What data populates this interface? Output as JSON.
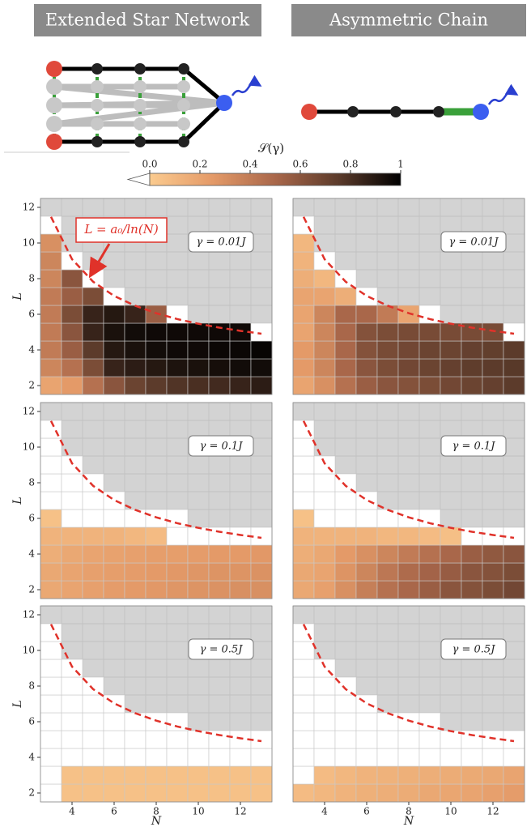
{
  "headers": [
    "Extended Star Network",
    "Asymmetric Chain"
  ],
  "colorbar": {
    "label": "𝒮(γ)",
    "lim": [
      0,
      1
    ],
    "ticks": [
      {
        "value": 0,
        "label": "0.0"
      },
      {
        "value": 0.2,
        "label": "0.2"
      },
      {
        "value": 0.4,
        "label": "0.4"
      },
      {
        "value": 0.6,
        "label": "0.6"
      },
      {
        "value": 0.8,
        "label": "0.8"
      },
      1
    ],
    "colors": [
      "#fbcb8f",
      "#e49a68",
      "#a9674a",
      "#5c3b2b",
      "#000000"
    ],
    "under": "#ffffff",
    "bad": "#d3d3d3"
  },
  "chart_data": [
    {
      "type": "heatmap",
      "annotation": "γ = 0.01J",
      "callout": "L = a₀/ln(N)",
      "ylabel": "L",
      "x": [
        3,
        4,
        5,
        6,
        7,
        8,
        9,
        10,
        11,
        12,
        13
      ],
      "y": [
        2,
        3,
        4,
        5,
        6,
        7,
        8,
        9,
        10,
        11,
        12
      ],
      "xlim": [
        2.5,
        13.5
      ],
      "ylim": [
        1.5,
        12.5
      ],
      "yticks": [
        2,
        4,
        6,
        8,
        10,
        12
      ],
      "z": [
        [
          0.2,
          0.25,
          0.45,
          0.6,
          0.7,
          0.75,
          0.78,
          0.8,
          0.82,
          0.85,
          0.88
        ],
        [
          0.35,
          0.45,
          0.65,
          0.85,
          0.88,
          0.9,
          0.92,
          0.93,
          0.94,
          0.95,
          0.95
        ],
        [
          0.4,
          0.55,
          0.75,
          0.9,
          0.93,
          0.95,
          0.96,
          0.96,
          0.97,
          0.97,
          0.98
        ],
        [
          0.4,
          0.6,
          0.85,
          0.93,
          0.95,
          0.96,
          0.96,
          0.96,
          0.96,
          0.96,
          -0.1
        ],
        [
          0.4,
          0.65,
          0.85,
          0.9,
          0.85,
          0.55,
          -0.1,
          null,
          null,
          null,
          null
        ],
        [
          0.4,
          0.55,
          0.65,
          -0.1,
          null,
          null,
          null,
          null,
          null,
          null,
          null
        ],
        [
          0.35,
          0.6,
          -0.1,
          null,
          null,
          null,
          null,
          null,
          null,
          null,
          null
        ],
        [
          0.35,
          -0.1,
          null,
          null,
          null,
          null,
          null,
          null,
          null,
          null,
          null
        ],
        [
          0.3,
          null,
          null,
          null,
          null,
          null,
          null,
          null,
          null,
          null,
          null
        ],
        [
          -0.1,
          null,
          null,
          null,
          null,
          null,
          null,
          null,
          null,
          null,
          null
        ],
        [
          null,
          null,
          null,
          null,
          null,
          null,
          null,
          null,
          null,
          null,
          null
        ]
      ],
      "curve": {
        "color": "#e0322a",
        "x": [
          3,
          4,
          5,
          6,
          7,
          8,
          9,
          10,
          11,
          12,
          13
        ],
        "y": [
          11.47,
          9.09,
          7.83,
          7.03,
          6.48,
          6.06,
          5.73,
          5.47,
          5.25,
          5.07,
          4.91
        ]
      }
    },
    {
      "type": "heatmap",
      "annotation": "γ = 0.01J",
      "x": [
        3,
        4,
        5,
        6,
        7,
        8,
        9,
        10,
        11,
        12,
        13
      ],
      "y": [
        2,
        3,
        4,
        5,
        6,
        7,
        8,
        9,
        10,
        11,
        12
      ],
      "xlim": [
        2.5,
        13.5
      ],
      "ylim": [
        1.5,
        12.5
      ],
      "z": [
        [
          0.2,
          0.3,
          0.45,
          0.55,
          0.6,
          0.62,
          0.65,
          0.68,
          0.7,
          0.72,
          0.75
        ],
        [
          0.25,
          0.35,
          0.5,
          0.6,
          0.65,
          0.68,
          0.7,
          0.72,
          0.74,
          0.75,
          0.76
        ],
        [
          0.25,
          0.35,
          0.5,
          0.62,
          0.66,
          0.68,
          0.7,
          0.7,
          0.72,
          0.73,
          0.75
        ],
        [
          0.2,
          0.35,
          0.5,
          0.62,
          0.65,
          0.66,
          0.66,
          0.66,
          0.66,
          0.66,
          -0.1
        ],
        [
          0.2,
          0.35,
          0.5,
          0.5,
          0.4,
          0.2,
          -0.1,
          null,
          null,
          null,
          null
        ],
        [
          0.2,
          0.2,
          0.15,
          -0.1,
          null,
          null,
          null,
          null,
          null,
          null,
          null
        ],
        [
          0.15,
          0.1,
          -0.1,
          null,
          null,
          null,
          null,
          null,
          null,
          null,
          null
        ],
        [
          0.12,
          -0.1,
          null,
          null,
          null,
          null,
          null,
          null,
          null,
          null,
          null
        ],
        [
          0.1,
          null,
          null,
          null,
          null,
          null,
          null,
          null,
          null,
          null,
          null
        ],
        [
          -0.1,
          null,
          null,
          null,
          null,
          null,
          null,
          null,
          null,
          null,
          null
        ],
        [
          null,
          null,
          null,
          null,
          null,
          null,
          null,
          null,
          null,
          null,
          null
        ]
      ],
      "curve": {
        "color": "#e0322a",
        "x": [
          3,
          4,
          5,
          6,
          7,
          8,
          9,
          10,
          11,
          12,
          13
        ],
        "y": [
          11.47,
          9.09,
          7.83,
          7.03,
          6.48,
          6.06,
          5.73,
          5.47,
          5.25,
          5.07,
          4.91
        ]
      }
    },
    {
      "type": "heatmap",
      "annotation": "γ = 0.1J",
      "ylabel": "L",
      "x": [
        3,
        4,
        5,
        6,
        7,
        8,
        9,
        10,
        11,
        12,
        13
      ],
      "y": [
        2,
        3,
        4,
        5,
        6,
        7,
        8,
        9,
        10,
        11,
        12
      ],
      "xlim": [
        2.5,
        13.5
      ],
      "ylim": [
        1.5,
        12.5
      ],
      "yticks": [
        2,
        4,
        6,
        8,
        10,
        12
      ],
      "z": [
        [
          0.18,
          0.2,
          0.22,
          0.24,
          0.25,
          0.26,
          0.27,
          0.28,
          0.29,
          0.3,
          0.3
        ],
        [
          0.18,
          0.2,
          0.22,
          0.23,
          0.24,
          0.25,
          0.26,
          0.27,
          0.28,
          0.28,
          0.29
        ],
        [
          0.15,
          0.18,
          0.2,
          0.21,
          0.22,
          0.23,
          0.23,
          0.24,
          0.25,
          0.25,
          0.26
        ],
        [
          0.12,
          0.12,
          0.12,
          0.12,
          0.1,
          0.08,
          -0.1,
          -0.1,
          -0.1,
          -0.1,
          -0.1
        ],
        [
          0.05,
          -0.1,
          -0.1,
          -0.1,
          -0.1,
          -0.1,
          -0.1,
          null,
          null,
          null,
          null
        ],
        [
          -0.1,
          -0.1,
          -0.1,
          -0.1,
          null,
          null,
          null,
          null,
          null,
          null,
          null
        ],
        [
          -0.1,
          -0.1,
          -0.1,
          null,
          null,
          null,
          null,
          null,
          null,
          null,
          null
        ],
        [
          -0.1,
          -0.1,
          null,
          null,
          null,
          null,
          null,
          null,
          null,
          null,
          null
        ],
        [
          -0.1,
          null,
          null,
          null,
          null,
          null,
          null,
          null,
          null,
          null,
          null
        ],
        [
          -0.1,
          null,
          null,
          null,
          null,
          null,
          null,
          null,
          null,
          null,
          null
        ],
        [
          null,
          null,
          null,
          null,
          null,
          null,
          null,
          null,
          null,
          null,
          null
        ]
      ],
      "curve": {
        "color": "#e0322a",
        "x": [
          3,
          4,
          5,
          6,
          7,
          8,
          9,
          10,
          11,
          12,
          13
        ],
        "y": [
          11.47,
          9.09,
          7.83,
          7.03,
          6.48,
          6.06,
          5.73,
          5.47,
          5.25,
          5.07,
          4.91
        ]
      }
    },
    {
      "type": "heatmap",
      "annotation": "γ = 0.1J",
      "x": [
        3,
        4,
        5,
        6,
        7,
        8,
        9,
        10,
        11,
        12,
        13
      ],
      "y": [
        2,
        3,
        4,
        5,
        6,
        7,
        8,
        9,
        10,
        11,
        12
      ],
      "xlim": [
        2.5,
        13.5
      ],
      "ylim": [
        1.5,
        12.5
      ],
      "z": [
        [
          0.18,
          0.22,
          0.3,
          0.38,
          0.45,
          0.5,
          0.55,
          0.6,
          0.62,
          0.65,
          0.68
        ],
        [
          0.18,
          0.2,
          0.28,
          0.35,
          0.42,
          0.48,
          0.52,
          0.56,
          0.6,
          0.62,
          0.65
        ],
        [
          0.15,
          0.18,
          0.25,
          0.3,
          0.35,
          0.4,
          0.45,
          0.5,
          0.55,
          0.58,
          0.6
        ],
        [
          0.12,
          0.12,
          0.12,
          0.12,
          0.1,
          0.1,
          0.08,
          0.06,
          -0.1,
          -0.1,
          -0.1
        ],
        [
          0.05,
          -0.1,
          -0.1,
          -0.1,
          -0.1,
          -0.1,
          -0.1,
          null,
          null,
          null,
          null
        ],
        [
          -0.1,
          -0.1,
          -0.1,
          -0.1,
          null,
          null,
          null,
          null,
          null,
          null,
          null
        ],
        [
          -0.1,
          -0.1,
          -0.1,
          null,
          null,
          null,
          null,
          null,
          null,
          null,
          null
        ],
        [
          -0.1,
          -0.1,
          null,
          null,
          null,
          null,
          null,
          null,
          null,
          null,
          null
        ],
        [
          -0.1,
          null,
          null,
          null,
          null,
          null,
          null,
          null,
          null,
          null,
          null
        ],
        [
          -0.1,
          null,
          null,
          null,
          null,
          null,
          null,
          null,
          null,
          null,
          null
        ],
        [
          null,
          null,
          null,
          null,
          null,
          null,
          null,
          null,
          null,
          null,
          null
        ]
      ],
      "curve": {
        "color": "#e0322a",
        "x": [
          3,
          4,
          5,
          6,
          7,
          8,
          9,
          10,
          11,
          12,
          13
        ],
        "y": [
          11.47,
          9.09,
          7.83,
          7.03,
          6.48,
          6.06,
          5.73,
          5.47,
          5.25,
          5.07,
          4.91
        ]
      }
    },
    {
      "type": "heatmap",
      "annotation": "γ = 0.5J",
      "ylabel": "L",
      "xlabel": "N",
      "x": [
        3,
        4,
        5,
        6,
        7,
        8,
        9,
        10,
        11,
        12,
        13
      ],
      "y": [
        2,
        3,
        4,
        5,
        6,
        7,
        8,
        9,
        10,
        11,
        12
      ],
      "xlim": [
        2.5,
        13.5
      ],
      "ylim": [
        1.5,
        12.5
      ],
      "yticks": [
        2,
        4,
        6,
        8,
        10,
        12
      ],
      "xticks": [
        4,
        6,
        8,
        10,
        12
      ],
      "z": [
        [
          -0.1,
          0.05,
          0.05,
          0.05,
          0.05,
          0.05,
          0.05,
          0.05,
          0.05,
          0.05,
          0.05
        ],
        [
          -0.1,
          0.05,
          0.05,
          0.05,
          0.05,
          0.05,
          0.05,
          0.05,
          0.05,
          0.05,
          0.05
        ],
        [
          -0.1,
          -0.1,
          -0.1,
          -0.1,
          -0.1,
          -0.1,
          -0.1,
          -0.1,
          -0.1,
          -0.1,
          -0.1
        ],
        [
          -0.1,
          -0.1,
          -0.1,
          -0.1,
          -0.1,
          -0.1,
          -0.1,
          -0.1,
          -0.1,
          -0.1,
          -0.1
        ],
        [
          -0.1,
          -0.1,
          -0.1,
          -0.1,
          -0.1,
          -0.1,
          -0.1,
          null,
          null,
          null,
          null
        ],
        [
          -0.1,
          -0.1,
          -0.1,
          -0.1,
          null,
          null,
          null,
          null,
          null,
          null,
          null
        ],
        [
          -0.1,
          -0.1,
          -0.1,
          null,
          null,
          null,
          null,
          null,
          null,
          null,
          null
        ],
        [
          -0.1,
          -0.1,
          null,
          null,
          null,
          null,
          null,
          null,
          null,
          null,
          null
        ],
        [
          -0.1,
          null,
          null,
          null,
          null,
          null,
          null,
          null,
          null,
          null,
          null
        ],
        [
          -0.1,
          null,
          null,
          null,
          null,
          null,
          null,
          null,
          null,
          null,
          null
        ],
        [
          null,
          null,
          null,
          null,
          null,
          null,
          null,
          null,
          null,
          null,
          null
        ]
      ],
      "curve": {
        "color": "#e0322a",
        "x": [
          3,
          4,
          5,
          6,
          7,
          8,
          9,
          10,
          11,
          12,
          13
        ],
        "y": [
          11.47,
          9.09,
          7.83,
          7.03,
          6.48,
          6.06,
          5.73,
          5.47,
          5.25,
          5.07,
          4.91
        ]
      }
    },
    {
      "type": "heatmap",
      "annotation": "γ = 0.5J",
      "xlabel": "N",
      "x": [
        3,
        4,
        5,
        6,
        7,
        8,
        9,
        10,
        11,
        12,
        13
      ],
      "y": [
        2,
        3,
        4,
        5,
        6,
        7,
        8,
        9,
        10,
        11,
        12
      ],
      "xlim": [
        2.5,
        13.5
      ],
      "ylim": [
        1.5,
        12.5
      ],
      "xticks": [
        4,
        6,
        8,
        10,
        12
      ],
      "z": [
        [
          0.08,
          0.1,
          0.12,
          0.14,
          0.15,
          0.16,
          0.18,
          0.19,
          0.2,
          0.22,
          0.24
        ],
        [
          -0.1,
          0.08,
          0.1,
          0.12,
          0.13,
          0.14,
          0.15,
          0.16,
          0.17,
          0.18,
          0.2
        ],
        [
          -0.1,
          -0.1,
          -0.1,
          -0.1,
          -0.1,
          -0.1,
          -0.1,
          -0.1,
          -0.1,
          -0.1,
          -0.1
        ],
        [
          -0.1,
          -0.1,
          -0.1,
          -0.1,
          -0.1,
          -0.1,
          -0.1,
          -0.1,
          -0.1,
          -0.1,
          -0.1
        ],
        [
          -0.1,
          -0.1,
          -0.1,
          -0.1,
          -0.1,
          -0.1,
          -0.1,
          null,
          null,
          null,
          null
        ],
        [
          -0.1,
          -0.1,
          -0.1,
          -0.1,
          null,
          null,
          null,
          null,
          null,
          null,
          null
        ],
        [
          -0.1,
          -0.1,
          -0.1,
          null,
          null,
          null,
          null,
          null,
          null,
          null,
          null
        ],
        [
          -0.1,
          -0.1,
          null,
          null,
          null,
          null,
          null,
          null,
          null,
          null,
          null
        ],
        [
          -0.1,
          null,
          null,
          null,
          null,
          null,
          null,
          null,
          null,
          null,
          null
        ],
        [
          -0.1,
          null,
          null,
          null,
          null,
          null,
          null,
          null,
          null,
          null,
          null
        ],
        [
          null,
          null,
          null,
          null,
          null,
          null,
          null,
          null,
          null,
          null,
          null
        ]
      ],
      "curve": {
        "color": "#e0322a",
        "x": [
          3,
          4,
          5,
          6,
          7,
          8,
          9,
          10,
          11,
          12,
          13
        ],
        "y": [
          11.47,
          9.09,
          7.83,
          7.03,
          6.48,
          6.06,
          5.73,
          5.47,
          5.25,
          5.07,
          4.91
        ]
      }
    }
  ]
}
